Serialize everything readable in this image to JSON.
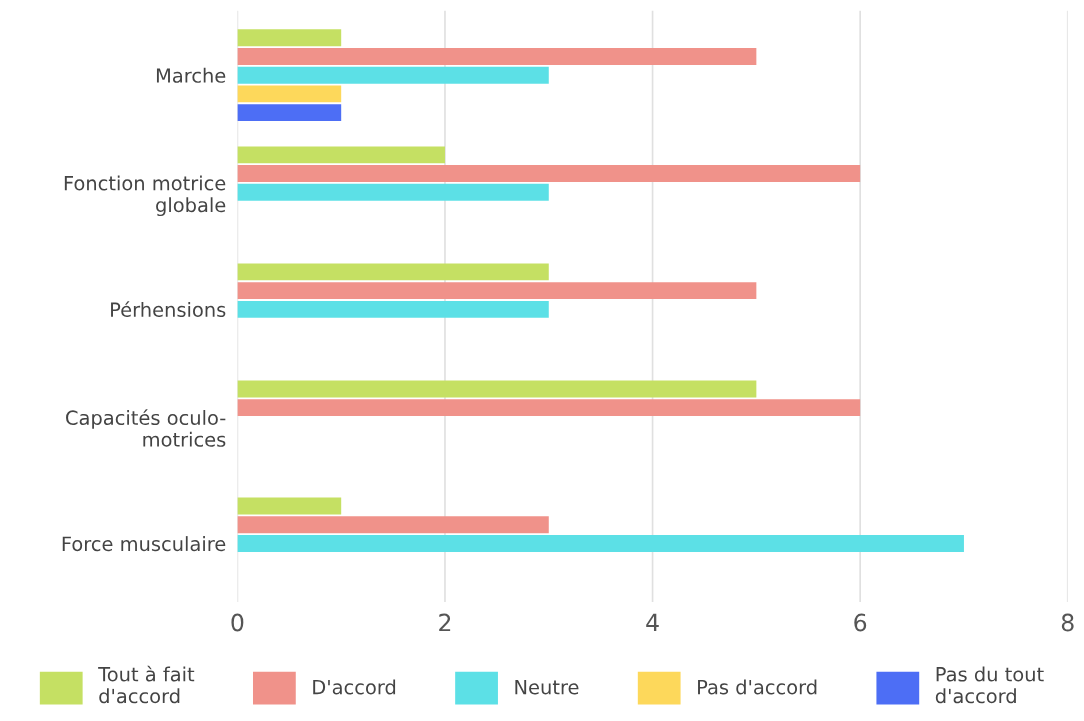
{
  "chart_data": {
    "type": "bar",
    "orientation": "horizontal",
    "categories": [
      "Marche",
      "Fonction motrice\nglobale",
      "Pérhensions",
      "Capacités oculo-\nmotrices",
      "Force musculaire"
    ],
    "series": [
      {
        "name": "Tout à fait\nd'accord",
        "color": "#c5e063",
        "values": [
          1,
          2,
          3,
          5,
          1
        ]
      },
      {
        "name": "D'accord",
        "color": "#f0928a",
        "values": [
          5,
          6,
          5,
          6,
          3
        ]
      },
      {
        "name": "Neutre",
        "color": "#5ce0e6",
        "values": [
          3,
          3,
          3,
          null,
          7
        ]
      },
      {
        "name": "Pas d'accord",
        "color": "#fdd85b",
        "values": [
          1,
          null,
          null,
          null,
          null
        ]
      },
      {
        "name": "Pas du tout\nd'accord",
        "color": "#4d6ef5",
        "values": [
          1,
          null,
          null,
          null,
          null
        ]
      }
    ],
    "xlim": [
      0,
      8
    ],
    "xticks": [
      0,
      2,
      4,
      6,
      8
    ],
    "grid": "x",
    "legend": "bottom"
  }
}
